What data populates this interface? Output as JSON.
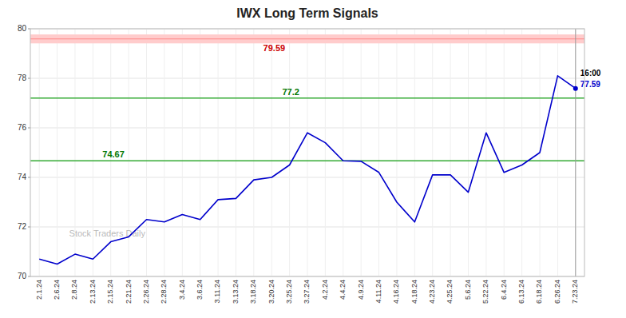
{
  "chart_data": {
    "type": "line",
    "title": "IWX Long Term Signals",
    "categories": [
      "2.1.24",
      "2.6.24",
      "2.8.24",
      "2.13.24",
      "2.15.24",
      "2.21.24",
      "2.26.24",
      "2.28.24",
      "3.4.24",
      "3.6.24",
      "3.11.24",
      "3.13.24",
      "3.18.24",
      "3.20.24",
      "3.25.24",
      "3.27.24",
      "4.2.24",
      "4.4.24",
      "4.9.24",
      "4.11.24",
      "4.16.24",
      "4.18.24",
      "4.23.24",
      "4.25.24",
      "5.6.24",
      "5.22.24",
      "6.4.24",
      "6.13.24",
      "6.18.24",
      "6.26.24",
      "7.23.24"
    ],
    "values": [
      70.7,
      70.5,
      70.9,
      70.7,
      71.4,
      71.6,
      72.3,
      72.2,
      72.5,
      72.3,
      73.1,
      73.15,
      73.9,
      74.0,
      74.5,
      75.8,
      75.4,
      74.67,
      74.65,
      74.2,
      73.0,
      72.2,
      74.1,
      74.1,
      73.4,
      75.8,
      74.2,
      74.5,
      75.0,
      78.1,
      77.59
    ],
    "color": "#0000cc",
    "ylim": [
      70,
      80
    ],
    "yticks": [
      70,
      72,
      74,
      76,
      78,
      80
    ],
    "grid": true,
    "reference_lines": [
      {
        "value": 79.59,
        "label": "79.59",
        "color": "#ff8888",
        "band_color": "#ffcccc",
        "label_color": "#cc0000"
      },
      {
        "value": 77.2,
        "label": "77.2",
        "color": "#33aa33",
        "label_color": "#007700"
      },
      {
        "value": 74.67,
        "label": "74.67",
        "color": "#33aa33",
        "label_color": "#007700"
      }
    ],
    "annotations": [
      {
        "text": "16:00",
        "color": "#000000"
      },
      {
        "text": "77.59",
        "color": "#0000cc"
      },
      {
        "text": "Stock Traders Daily"
      }
    ]
  }
}
